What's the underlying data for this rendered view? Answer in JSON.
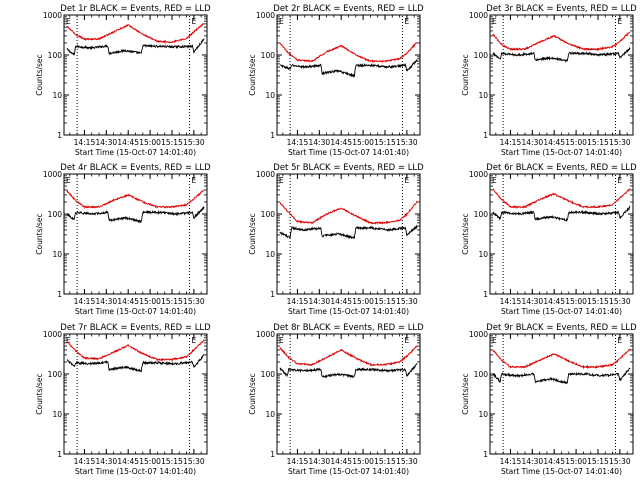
{
  "figure": {
    "background": "#ffffff",
    "colors": {
      "events": "#000000",
      "lld": "#e00000",
      "axes": "#000000"
    },
    "shared_y_ticks": [
      "1",
      "10",
      "100",
      "1000"
    ],
    "shared_x_ticks": [
      "14:15",
      "14:30",
      "14:45",
      "15:00",
      "15:15",
      "15:30"
    ],
    "shared_xlabel": "Start Time (15-Oct-07 14:01:40)",
    "shared_ylabel": "Counts/sec",
    "marker_label": "E"
  },
  "chart_data": [
    {
      "type": "line",
      "title": "Det 1r BLACK = Events, RED = LLD",
      "xlabel": "Start Time (15-Oct-07 14:01:40)",
      "ylabel": "Counts/sec",
      "x_ticks": [
        "14:15",
        "14:30",
        "14:45",
        "15:00",
        "15:15",
        "15:30"
      ],
      "y_ticks": [
        "1",
        "10",
        "100",
        "1000"
      ],
      "y_scale": "log",
      "ylim": [
        1,
        1000
      ],
      "xlim": [
        "14:01",
        "15:39"
      ],
      "grid": false,
      "vertical_markers": [
        "14:10",
        "15:27"
      ],
      "series": [
        {
          "name": "BLACK = Events",
          "color": "#000000",
          "x": [
            "14:03",
            "14:08",
            "14:09",
            "14:20",
            "14:31",
            "14:32",
            "14:43",
            "14:54",
            "14:55",
            "15:06",
            "15:17",
            "15:29",
            "15:30",
            "15:37"
          ],
          "values": [
            140,
            100,
            165,
            150,
            170,
            110,
            130,
            110,
            170,
            165,
            160,
            165,
            120,
            250
          ]
        },
        {
          "name": "RED = LLD",
          "color": "#e00000",
          "x": [
            "14:03",
            "14:09",
            "14:15",
            "14:25",
            "14:35",
            "14:45",
            "14:55",
            "15:05",
            "15:15",
            "15:25",
            "15:30",
            "15:37"
          ],
          "values": [
            520,
            330,
            250,
            250,
            380,
            560,
            330,
            220,
            210,
            260,
            380,
            620
          ]
        }
      ]
    },
    {
      "type": "line",
      "title": "Det 2r BLACK = Events, RED = LLD",
      "xlabel": "Start Time (15-Oct-07 14:01:40)",
      "ylabel": "Counts/sec",
      "x_ticks": [
        "14:15",
        "14:30",
        "14:45",
        "15:00",
        "15:15",
        "15:30"
      ],
      "y_ticks": [
        "1",
        "10",
        "100",
        "1000"
      ],
      "y_scale": "log",
      "ylim": [
        1,
        1000
      ],
      "xlim": [
        "14:01",
        "15:39"
      ],
      "grid": false,
      "vertical_markers": [
        "14:10",
        "15:27"
      ],
      "series": [
        {
          "name": "BLACK = Events",
          "color": "#000000",
          "x": [
            "14:03",
            "14:10",
            "14:11",
            "14:20",
            "14:31",
            "14:32",
            "14:43",
            "14:54",
            "14:55",
            "15:06",
            "15:17",
            "15:29",
            "15:30",
            "15:37"
          ],
          "values": [
            55,
            45,
            55,
            50,
            55,
            35,
            40,
            30,
            55,
            55,
            50,
            55,
            40,
            75
          ]
        },
        {
          "name": "RED = LLD",
          "color": "#e00000",
          "x": [
            "14:03",
            "14:09",
            "14:15",
            "14:25",
            "14:35",
            "14:45",
            "14:55",
            "15:05",
            "15:15",
            "15:25",
            "15:30",
            "15:37"
          ],
          "values": [
            200,
            110,
            75,
            70,
            120,
            170,
            100,
            70,
            70,
            80,
            110,
            210
          ]
        }
      ]
    },
    {
      "type": "line",
      "title": "Det 3r BLACK = Events, RED = LLD",
      "xlabel": "Start Time (15-Oct-07 14:01:40)",
      "ylabel": "Counts/sec",
      "x_ticks": [
        "14:15",
        "14:30",
        "14:45",
        "15:00",
        "15:15",
        "15:30"
      ],
      "y_ticks": [
        "1",
        "10",
        "100",
        "1000"
      ],
      "y_scale": "log",
      "ylim": [
        1,
        1000
      ],
      "xlim": [
        "14:01",
        "15:39"
      ],
      "grid": false,
      "vertical_markers": [
        "14:10",
        "15:27"
      ],
      "series": [
        {
          "name": "BLACK = Events",
          "color": "#000000",
          "x": [
            "14:03",
            "14:08",
            "14:09",
            "14:20",
            "14:31",
            "14:32",
            "14:43",
            "14:54",
            "14:55",
            "15:06",
            "15:17",
            "15:29",
            "15:30",
            "15:37"
          ],
          "values": [
            110,
            80,
            110,
            100,
            110,
            75,
            85,
            70,
            110,
            110,
            100,
            110,
            85,
            150
          ]
        },
        {
          "name": "RED = LLD",
          "color": "#e00000",
          "x": [
            "14:03",
            "14:09",
            "14:15",
            "14:25",
            "14:35",
            "14:45",
            "14:55",
            "15:05",
            "15:15",
            "15:25",
            "15:30",
            "15:37"
          ],
          "values": [
            330,
            180,
            140,
            140,
            210,
            300,
            190,
            140,
            140,
            160,
            220,
            380
          ]
        }
      ]
    },
    {
      "type": "line",
      "title": "Det 4r BLACK = Events, RED = LLD",
      "xlabel": "Start Time (15-Oct-07 14:01:40)",
      "ylabel": "Counts/sec",
      "x_ticks": [
        "14:15",
        "14:30",
        "14:45",
        "15:00",
        "15:15",
        "15:30"
      ],
      "y_ticks": [
        "1",
        "10",
        "100",
        "1000"
      ],
      "y_scale": "log",
      "ylim": [
        1,
        1000
      ],
      "xlim": [
        "14:01",
        "15:39"
      ],
      "grid": false,
      "vertical_markers": [
        "14:10",
        "15:27"
      ],
      "series": [
        {
          "name": "BLACK = Events",
          "color": "#000000",
          "x": [
            "14:03",
            "14:08",
            "14:09",
            "14:20",
            "14:31",
            "14:32",
            "14:43",
            "14:54",
            "14:55",
            "15:06",
            "15:17",
            "15:29",
            "15:30",
            "15:37"
          ],
          "values": [
            100,
            70,
            110,
            100,
            110,
            70,
            80,
            65,
            110,
            110,
            100,
            110,
            80,
            150
          ]
        },
        {
          "name": "RED = LLD",
          "color": "#e00000",
          "x": [
            "14:03",
            "14:09",
            "14:15",
            "14:25",
            "14:35",
            "14:45",
            "14:55",
            "15:05",
            "15:15",
            "15:25",
            "15:30",
            "15:37"
          ],
          "values": [
            380,
            220,
            150,
            150,
            220,
            300,
            200,
            150,
            150,
            170,
            240,
            400
          ]
        }
      ]
    },
    {
      "type": "line",
      "title": "Det 5r BLACK = Events, RED = LLD",
      "xlabel": "Start Time (15-Oct-07 14:01:40)",
      "ylabel": "Counts/sec",
      "x_ticks": [
        "14:15",
        "14:30",
        "14:45",
        "15:00",
        "15:15",
        "15:30"
      ],
      "y_ticks": [
        "1",
        "10",
        "100",
        "1000"
      ],
      "y_scale": "log",
      "ylim": [
        1,
        1000
      ],
      "xlim": [
        "14:01",
        "15:39"
      ],
      "grid": false,
      "vertical_markers": [
        "14:10",
        "15:27"
      ],
      "series": [
        {
          "name": "BLACK = Events",
          "color": "#000000",
          "x": [
            "14:03",
            "14:10",
            "14:11",
            "14:20",
            "14:31",
            "14:32",
            "14:43",
            "14:54",
            "14:55",
            "15:06",
            "15:17",
            "15:29",
            "15:30",
            "15:37"
          ],
          "values": [
            35,
            25,
            45,
            40,
            45,
            28,
            32,
            25,
            45,
            45,
            40,
            45,
            30,
            50
          ]
        },
        {
          "name": "RED = LLD",
          "color": "#e00000",
          "x": [
            "14:03",
            "14:09",
            "14:15",
            "14:25",
            "14:35",
            "14:45",
            "14:55",
            "15:05",
            "15:15",
            "15:25",
            "15:30",
            "15:37"
          ],
          "values": [
            190,
            110,
            65,
            60,
            100,
            140,
            90,
            60,
            60,
            70,
            100,
            200
          ]
        }
      ]
    },
    {
      "type": "line",
      "title": "Det 6r BLACK = Events, RED = LLD",
      "xlabel": "Start Time (15-Oct-07 14:01:40)",
      "ylabel": "Counts/sec",
      "x_ticks": [
        "14:15",
        "14:30",
        "14:45",
        "15:00",
        "15:15",
        "15:30"
      ],
      "y_ticks": [
        "1",
        "10",
        "100",
        "1000"
      ],
      "y_scale": "log",
      "ylim": [
        1,
        1000
      ],
      "xlim": [
        "14:01",
        "15:39"
      ],
      "grid": false,
      "vertical_markers": [
        "14:10",
        "15:27"
      ],
      "series": [
        {
          "name": "BLACK = Events",
          "color": "#000000",
          "x": [
            "14:03",
            "14:08",
            "14:09",
            "14:20",
            "14:31",
            "14:32",
            "14:43",
            "14:54",
            "14:55",
            "15:06",
            "15:17",
            "15:29",
            "15:30",
            "15:37"
          ],
          "values": [
            110,
            75,
            110,
            100,
            110,
            75,
            85,
            70,
            110,
            110,
            100,
            110,
            80,
            150
          ]
        },
        {
          "name": "RED = LLD",
          "color": "#e00000",
          "x": [
            "14:03",
            "14:09",
            "14:15",
            "14:25",
            "14:35",
            "14:45",
            "14:55",
            "15:05",
            "15:15",
            "15:25",
            "15:30",
            "15:37"
          ],
          "values": [
            420,
            230,
            150,
            150,
            230,
            320,
            210,
            150,
            150,
            170,
            250,
            420
          ]
        }
      ]
    },
    {
      "type": "line",
      "title": "Det 7r BLACK = Events, RED = LLD",
      "xlabel": "Start Time (15-Oct-07 14:01:40)",
      "ylabel": "Counts/sec",
      "x_ticks": [
        "14:15",
        "14:30",
        "14:45",
        "15:00",
        "15:15",
        "15:30"
      ],
      "y_ticks": [
        "1",
        "10",
        "100",
        "1000"
      ],
      "y_scale": "log",
      "ylim": [
        1,
        1000
      ],
      "xlim": [
        "14:01",
        "15:39"
      ],
      "grid": false,
      "vertical_markers": [
        "14:10",
        "15:27"
      ],
      "series": [
        {
          "name": "BLACK = Events",
          "color": "#000000",
          "x": [
            "14:03",
            "14:08",
            "14:09",
            "14:20",
            "14:31",
            "14:32",
            "14:43",
            "14:54",
            "14:55",
            "15:06",
            "15:17",
            "15:29",
            "15:30",
            "15:37"
          ],
          "values": [
            220,
            160,
            190,
            180,
            200,
            130,
            150,
            120,
            190,
            190,
            180,
            200,
            150,
            300
          ]
        },
        {
          "name": "RED = LLD",
          "color": "#e00000",
          "x": [
            "14:03",
            "14:09",
            "14:15",
            "14:25",
            "14:35",
            "14:45",
            "14:55",
            "15:05",
            "15:15",
            "15:25",
            "15:30",
            "15:37"
          ],
          "values": [
            650,
            380,
            250,
            240,
            350,
            520,
            320,
            230,
            230,
            270,
            400,
            700
          ]
        }
      ]
    },
    {
      "type": "line",
      "title": "Det 8r BLACK = Events, RED = LLD",
      "xlabel": "Start Time (15-Oct-07 14:01:40)",
      "ylabel": "Counts/sec",
      "x_ticks": [
        "14:15",
        "14:30",
        "14:45",
        "15:00",
        "15:15",
        "15:30"
      ],
      "y_ticks": [
        "1",
        "10",
        "100",
        "1000"
      ],
      "y_scale": "log",
      "ylim": [
        1,
        1000
      ],
      "xlim": [
        "14:01",
        "15:39"
      ],
      "grid": false,
      "vertical_markers": [
        "14:10",
        "15:27"
      ],
      "series": [
        {
          "name": "BLACK = Events",
          "color": "#000000",
          "x": [
            "14:03",
            "14:08",
            "14:09",
            "14:20",
            "14:31",
            "14:32",
            "14:43",
            "14:54",
            "14:55",
            "15:06",
            "15:17",
            "15:29",
            "15:30",
            "15:37"
          ],
          "values": [
            140,
            90,
            130,
            120,
            130,
            85,
            100,
            85,
            130,
            130,
            120,
            130,
            90,
            180
          ]
        },
        {
          "name": "RED = LLD",
          "color": "#e00000",
          "x": [
            "14:03",
            "14:09",
            "14:15",
            "14:25",
            "14:35",
            "14:45",
            "14:55",
            "15:05",
            "15:15",
            "15:25",
            "15:30",
            "15:37"
          ],
          "values": [
            450,
            260,
            180,
            170,
            260,
            400,
            250,
            170,
            170,
            200,
            280,
            500
          ]
        }
      ]
    },
    {
      "type": "line",
      "title": "Det 9r BLACK = Events, RED = LLD",
      "xlabel": "Start Time (15-Oct-07 14:01:40)",
      "ylabel": "Counts/sec",
      "x_ticks": [
        "14:15",
        "14:30",
        "14:45",
        "15:00",
        "15:15",
        "15:30"
      ],
      "y_ticks": [
        "1",
        "10",
        "100",
        "1000"
      ],
      "y_scale": "log",
      "ylim": [
        1,
        1000
      ],
      "xlim": [
        "14:01",
        "15:39"
      ],
      "grid": false,
      "vertical_markers": [
        "14:10",
        "15:27"
      ],
      "series": [
        {
          "name": "BLACK = Events",
          "color": "#000000",
          "x": [
            "14:03",
            "14:08",
            "14:09",
            "14:20",
            "14:31",
            "14:32",
            "14:43",
            "14:54",
            "14:55",
            "15:06",
            "15:17",
            "15:29",
            "15:30",
            "15:37"
          ],
          "values": [
            100,
            65,
            100,
            90,
            100,
            65,
            75,
            60,
            100,
            100,
            90,
            100,
            70,
            140
          ]
        },
        {
          "name": "RED = LLD",
          "color": "#e00000",
          "x": [
            "14:03",
            "14:09",
            "14:15",
            "14:25",
            "14:35",
            "14:45",
            "14:55",
            "15:05",
            "15:15",
            "15:25",
            "15:30",
            "15:37"
          ],
          "values": [
            400,
            220,
            150,
            150,
            220,
            320,
            210,
            150,
            150,
            170,
            240,
            420
          ]
        }
      ]
    }
  ]
}
